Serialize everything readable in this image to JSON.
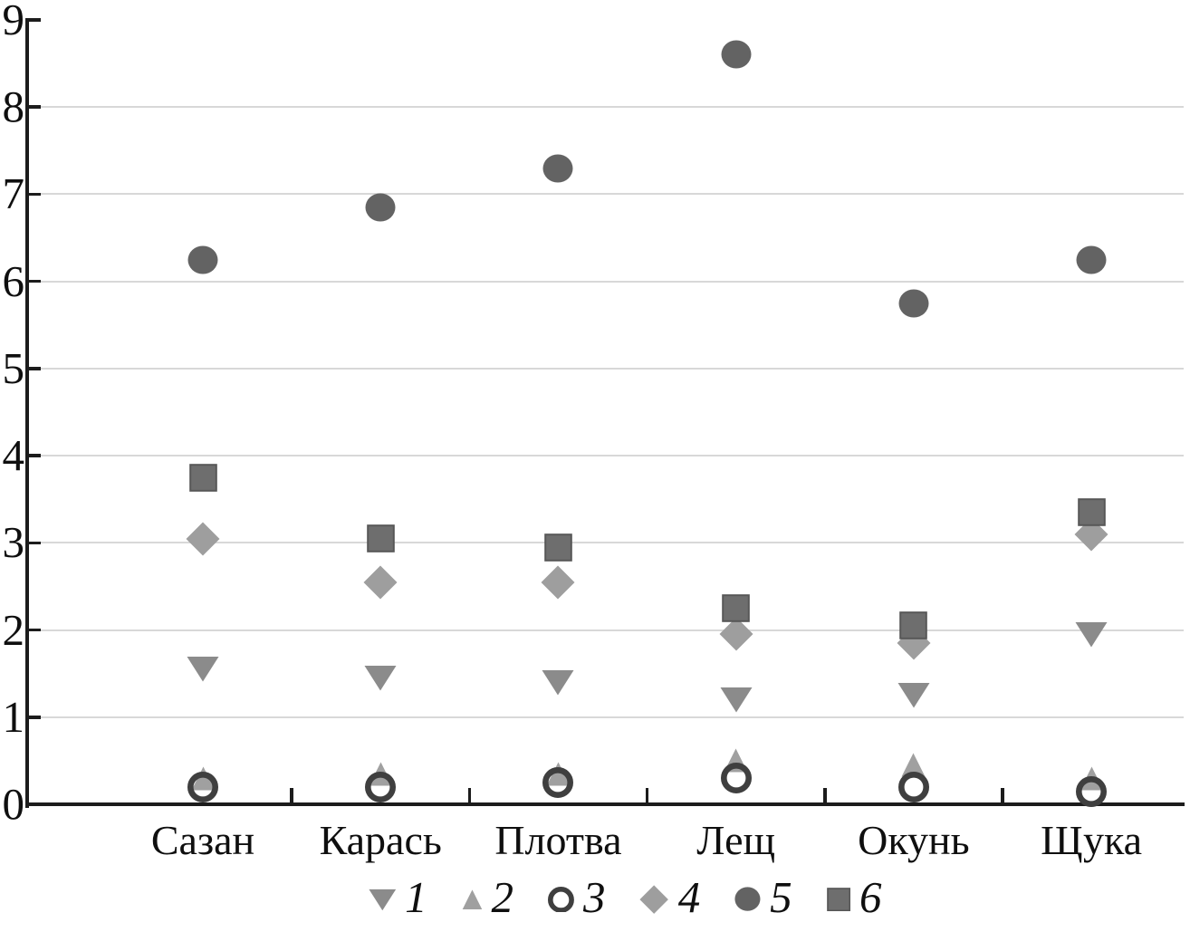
{
  "chart_data": {
    "type": "scatter",
    "title": "",
    "xlabel": "",
    "ylabel": "",
    "categories": [
      "Сазан",
      "Карась",
      "Плотва",
      "Лещ",
      "Окунь",
      "Щука"
    ],
    "series": [
      {
        "name": "1",
        "marker": "triangle-down",
        "color": "#8b8b8b",
        "values": [
          1.55,
          1.45,
          1.4,
          1.2,
          1.25,
          1.95
        ]
      },
      {
        "name": "2",
        "marker": "triangle-up",
        "color": "#a0a0a0",
        "values": [
          0.3,
          0.35,
          0.35,
          0.5,
          0.45,
          0.3
        ]
      },
      {
        "name": "3",
        "marker": "circle-open",
        "color": "#3f3f3f",
        "values": [
          0.2,
          0.2,
          0.25,
          0.3,
          0.2,
          0.15
        ]
      },
      {
        "name": "4",
        "marker": "diamond",
        "color": "#9e9e9e",
        "values": [
          3.05,
          2.55,
          2.55,
          1.95,
          1.85,
          3.1
        ]
      },
      {
        "name": "5",
        "marker": "circle-filled",
        "color": "#636363",
        "values": [
          6.25,
          6.85,
          7.3,
          8.6,
          5.75,
          6.25
        ]
      },
      {
        "name": "6",
        "marker": "square-filled",
        "color": "#6e6e6e",
        "values": [
          3.75,
          3.05,
          2.95,
          2.25,
          2.05,
          3.35
        ]
      }
    ],
    "ylim": [
      0,
      9
    ],
    "yticks": [
      0,
      1,
      2,
      3,
      4,
      5,
      6,
      7,
      8,
      9
    ],
    "grid": "horizontal-only",
    "legend_position": "bottom",
    "legend_labels": [
      "1",
      "2",
      "3",
      "4",
      "5",
      "6"
    ]
  },
  "style": {
    "background": "#ffffff",
    "axis_color": "#1c1c1c",
    "grid_color": "#d8d8d8",
    "text_color": "#0f0f0f",
    "square_stroke": "#575757"
  }
}
